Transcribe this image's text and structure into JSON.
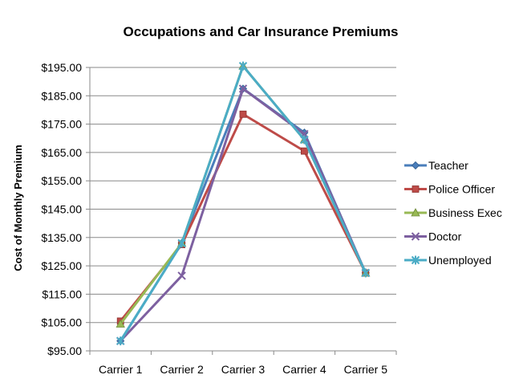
{
  "chart_data": {
    "type": "line",
    "title": "Occupations and Car Insurance Premiums",
    "xlabel": "",
    "ylabel": "Cost of Monthly Premium",
    "ylim": [
      95,
      195
    ],
    "ytick_values": [
      95,
      105,
      115,
      125,
      135,
      145,
      155,
      165,
      175,
      185,
      195
    ],
    "ytick_labels": [
      "$95.00",
      "$105.00",
      "$115.00",
      "$125.00",
      "$135.00",
      "$145.00",
      "$155.00",
      "$165.00",
      "$175.00",
      "$185.00",
      "$195.00"
    ],
    "categories": [
      "Carrier 1",
      "Carrier 2",
      "Carrier 3",
      "Carrier 4",
      "Carrier 5"
    ],
    "grid": "horizontal",
    "legend_position": "right",
    "series": [
      {
        "name": "Teacher",
        "color": "#4a7ebb",
        "marker": "diamond",
        "values": [
          98.5,
          133,
          187.5,
          172,
          122.5
        ]
      },
      {
        "name": "Police Officer",
        "color": "#be4b48",
        "marker": "square",
        "values": [
          105.5,
          132.5,
          178.5,
          165.5,
          122.5
        ]
      },
      {
        "name": "Business Exec",
        "color": "#98b954",
        "marker": "triangle",
        "values": [
          104.5,
          133,
          195.5,
          169.5,
          122.5
        ]
      },
      {
        "name": "Doctor",
        "color": "#7d60a0",
        "marker": "x",
        "values": [
          98.5,
          121.5,
          187.5,
          171.5,
          122.5
        ]
      },
      {
        "name": "Unemployed",
        "color": "#4bacc6",
        "marker": "star",
        "values": [
          98.5,
          133,
          195.5,
          169.5,
          122.5
        ]
      }
    ]
  }
}
